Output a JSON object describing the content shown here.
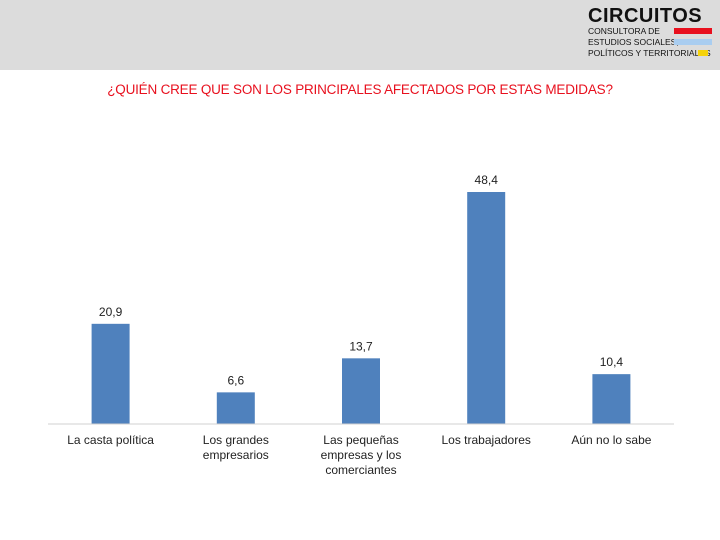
{
  "logo": {
    "brand": "CIRCUITOS",
    "line1": "CONSULTORA DE",
    "line2": "ESTUDIOS SOCIALES,",
    "line3": "POLÍTICOS Y TERRITORIALES",
    "colors": [
      "#e8101e",
      "#a9cdf0",
      "#f5d20a"
    ]
  },
  "chart_data": {
    "type": "bar",
    "title": "¿QUIÉN CREE QUE SON LOS PRINCIPALES AFECTADOS POR ESTAS MEDIDAS?",
    "categories": [
      [
        "La casta política"
      ],
      [
        "Los grandes",
        "empresarios"
      ],
      [
        "Las pequeñas",
        "empresas y los",
        "comerciantes"
      ],
      [
        "Los trabajadores"
      ],
      [
        "Aún no lo sabe"
      ]
    ],
    "values": [
      20.9,
      6.6,
      13.7,
      48.4,
      10.4
    ],
    "value_labels": [
      "20,9",
      "6,6",
      "13,7",
      "48,4",
      "10,4"
    ],
    "bar_color": "#4f81bd",
    "title_color": "#e8101e",
    "grid": false,
    "legend": "none"
  }
}
